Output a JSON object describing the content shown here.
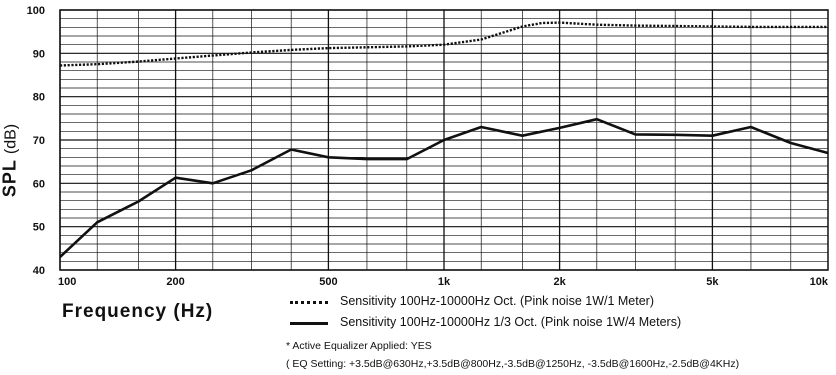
{
  "chart_data": {
    "type": "line",
    "title": "",
    "xlabel": "Frequency (Hz)",
    "ylabel": "SPL (dB)",
    "ylabel_parts": {
      "main": "SPL",
      "unit": "(dB)"
    },
    "x_scale": "log",
    "xlim": [
      100,
      10000
    ],
    "ylim": [
      40,
      100
    ],
    "grid": true,
    "x_ticks": [
      {
        "value": 100,
        "label": "100"
      },
      {
        "value": 200,
        "label": "200"
      },
      {
        "value": 500,
        "label": "500"
      },
      {
        "value": 1000,
        "label": "1k"
      },
      {
        "value": 2000,
        "label": "2k"
      },
      {
        "value": 5000,
        "label": "5k"
      },
      {
        "value": 10000,
        "label": "10k"
      }
    ],
    "y_ticks": [
      40,
      50,
      60,
      70,
      80,
      90,
      100
    ],
    "series": [
      {
        "name": "Sensitivity 100Hz-10000Hz Oct. (Pink noise 1W/1 Meter)",
        "style": "dotted",
        "color": "#111111",
        "x": [
          100,
          125,
          160,
          200,
          250,
          315,
          400,
          500,
          630,
          800,
          1000,
          1250,
          1600,
          1800,
          2000,
          2500,
          3150,
          4000,
          5000,
          6300,
          8000,
          10000
        ],
        "y": [
          87.2,
          87.5,
          88.1,
          88.8,
          89.5,
          90.2,
          90.8,
          91.2,
          91.4,
          91.6,
          92.0,
          93.2,
          96.2,
          97.0,
          97.1,
          96.6,
          96.4,
          96.3,
          96.2,
          96.1,
          96.1,
          96.1
        ]
      },
      {
        "name": "Sensitivity 100Hz-10000Hz 1/3 Oct. (Pink noise 1W/4 Meters)",
        "style": "solid",
        "color": "#111111",
        "x": [
          100,
          125,
          160,
          200,
          250,
          315,
          400,
          500,
          630,
          800,
          1000,
          1250,
          1600,
          2000,
          2500,
          3150,
          4000,
          5000,
          6300,
          8000,
          10000
        ],
        "y": [
          43.0,
          51.0,
          55.8,
          61.3,
          60.0,
          63.0,
          67.8,
          66.0,
          65.6,
          65.6,
          70.0,
          73.0,
          71.0,
          72.8,
          74.8,
          71.3,
          71.2,
          71.0,
          73.0,
          69.3,
          67.0
        ]
      }
    ],
    "notes": [
      "* Active Equalizer Applied: YES",
      "( EQ Setting: +3.5dB@630Hz,+3.5dB@800Hz,-3.5dB@1250Hz, -3.5dB@1600Hz,-2.5dB@4KHz)"
    ]
  }
}
